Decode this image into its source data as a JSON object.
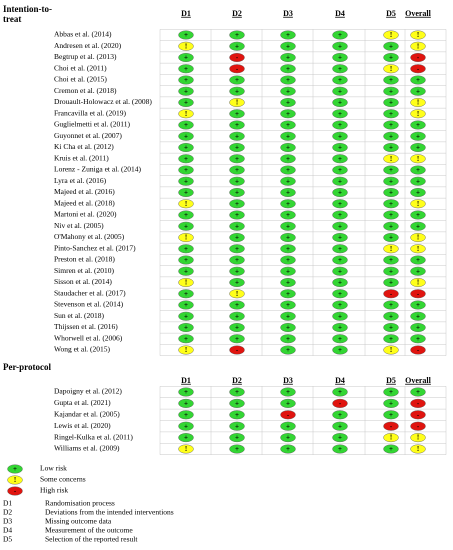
{
  "sections": [
    {
      "label": "Intention-to-treat",
      "columns": [
        "D1",
        "D2",
        "D3",
        "D4",
        "D5",
        "Overall"
      ],
      "rows": [
        {
          "study": "Abbas et al. (2014)",
          "judgements": [
            "+",
            "+",
            "+",
            "+",
            "!",
            "!"
          ]
        },
        {
          "study": "Andresen et al. (2020)",
          "judgements": [
            "!",
            "+",
            "+",
            "+",
            "+",
            "!"
          ]
        },
        {
          "study": "Begtrup et al. (2013)",
          "judgements": [
            "+",
            "-",
            "+",
            "+",
            "+",
            "-"
          ]
        },
        {
          "study": "Choi et al. (2011)",
          "judgements": [
            "+",
            "-",
            "+",
            "+",
            "!",
            "-"
          ]
        },
        {
          "study": "Choi et al. (2015)",
          "judgements": [
            "+",
            "+",
            "+",
            "+",
            "+",
            "+"
          ]
        },
        {
          "study": "Cremon et al. (2018)",
          "judgements": [
            "+",
            "+",
            "+",
            "+",
            "+",
            "+"
          ]
        },
        {
          "study": "Drouault-Holowacz et al. (2008)",
          "judgements": [
            "+",
            "!",
            "+",
            "+",
            "+",
            "!"
          ]
        },
        {
          "study": "Francavilla et al. (2019)",
          "judgements": [
            "!",
            "+",
            "+",
            "+",
            "+",
            "!"
          ]
        },
        {
          "study": "Guglielmetti et al. (2011)",
          "judgements": [
            "+",
            "+",
            "+",
            "+",
            "+",
            "+"
          ]
        },
        {
          "study": "Guyonnet et al. (2007)",
          "judgements": [
            "+",
            "+",
            "+",
            "+",
            "+",
            "+"
          ]
        },
        {
          "study": "Ki Cha et al. (2012)",
          "judgements": [
            "+",
            "+",
            "+",
            "+",
            "+",
            "+"
          ]
        },
        {
          "study": "Kruis et al. (2011)",
          "judgements": [
            "+",
            "+",
            "+",
            "+",
            "!",
            "!"
          ]
        },
        {
          "study": "Lorenz - Zuniga et al. (2014)",
          "judgements": [
            "+",
            "+",
            "+",
            "+",
            "+",
            "+"
          ]
        },
        {
          "study": "Lyra et al. (2016)",
          "judgements": [
            "+",
            "+",
            "+",
            "+",
            "+",
            "+"
          ]
        },
        {
          "study": "Majeed et al. (2016)",
          "judgements": [
            "+",
            "+",
            "+",
            "+",
            "+",
            "+"
          ]
        },
        {
          "study": "Majeed et al. (2018)",
          "judgements": [
            "!",
            "+",
            "+",
            "+",
            "+",
            "!"
          ]
        },
        {
          "study": "Martoni et al. (2020)",
          "judgements": [
            "+",
            "+",
            "+",
            "+",
            "+",
            "+"
          ]
        },
        {
          "study": "Niv et al. (2005)",
          "judgements": [
            "+",
            "+",
            "+",
            "+",
            "+",
            "+"
          ]
        },
        {
          "study": "O'Mahony et al. (2005)",
          "judgements": [
            "!",
            "+",
            "+",
            "+",
            "+",
            "!"
          ]
        },
        {
          "study": "Pinto-Sanchez et al. (2017)",
          "judgements": [
            "+",
            "+",
            "+",
            "+",
            "!",
            "!"
          ]
        },
        {
          "study": "Preston et al. (2018)",
          "judgements": [
            "+",
            "+",
            "+",
            "+",
            "+",
            "+"
          ]
        },
        {
          "study": "Simren et al. (2010)",
          "judgements": [
            "+",
            "+",
            "+",
            "+",
            "+",
            "+"
          ]
        },
        {
          "study": "Sisson et al. (2014)",
          "judgements": [
            "!",
            "+",
            "+",
            "+",
            "+",
            "!"
          ]
        },
        {
          "study": "Staudacher et al. (2017)",
          "judgements": [
            "+",
            "!",
            "+",
            "+",
            "-",
            "-"
          ]
        },
        {
          "study": "Stevenson et al. (2014)",
          "judgements": [
            "+",
            "+",
            "+",
            "+",
            "+",
            "+"
          ]
        },
        {
          "study": "Sun et al. (2018)",
          "judgements": [
            "+",
            "+",
            "+",
            "+",
            "+",
            "+"
          ]
        },
        {
          "study": "Thijssen et al. (2016)",
          "judgements": [
            "+",
            "+",
            "+",
            "+",
            "+",
            "+"
          ]
        },
        {
          "study": "Whorwell et al. (2006)",
          "judgements": [
            "+",
            "+",
            "+",
            "+",
            "+",
            "+"
          ]
        },
        {
          "study": "Wong et al. (2015)",
          "judgements": [
            "!",
            "-",
            "+",
            "+",
            "!",
            "-"
          ]
        }
      ]
    },
    {
      "label": "Per-protocol",
      "columns": [
        "D1",
        "D2",
        "D3",
        "D4",
        "D5",
        "Overall"
      ],
      "rows": [
        {
          "study": "Dapoigny et al. (2012)",
          "judgements": [
            "+",
            "+",
            "+",
            "+",
            "+",
            "+"
          ]
        },
        {
          "study": "Gupta et al. (2021)",
          "judgements": [
            "+",
            "+",
            "+",
            "-",
            "+",
            "-"
          ]
        },
        {
          "study": "Kajandar et al. (2005)",
          "judgements": [
            "+",
            "+",
            "-",
            "+",
            "+",
            "-"
          ]
        },
        {
          "study": "Lewis et al. (2020)",
          "judgements": [
            "+",
            "+",
            "+",
            "+",
            "-",
            "-"
          ]
        },
        {
          "study": "Ringel-Kulka et al. (2011)",
          "judgements": [
            "+",
            "+",
            "+",
            "+",
            "!",
            "!"
          ]
        },
        {
          "study": "Williams et al. (2009)",
          "judgements": [
            "!",
            "+",
            "+",
            "+",
            "+",
            "!"
          ]
        }
      ]
    }
  ],
  "legend": [
    {
      "symbol": "+",
      "label": "Low risk",
      "color": "#33d633"
    },
    {
      "symbol": "!",
      "label": "Some concerns",
      "color": "#ffff1a"
    },
    {
      "symbol": "-",
      "label": "High risk",
      "color": "#e0140f"
    }
  ],
  "domains": [
    {
      "code": "D1",
      "label": "Randomisation process"
    },
    {
      "code": "D2",
      "label": "Deviations from the intended interventions"
    },
    {
      "code": "D3",
      "label": "Missing outcome data"
    },
    {
      "code": "D4",
      "label": "Measurement of the outcome"
    },
    {
      "code": "D5",
      "label": "Selection of the reported result"
    }
  ]
}
